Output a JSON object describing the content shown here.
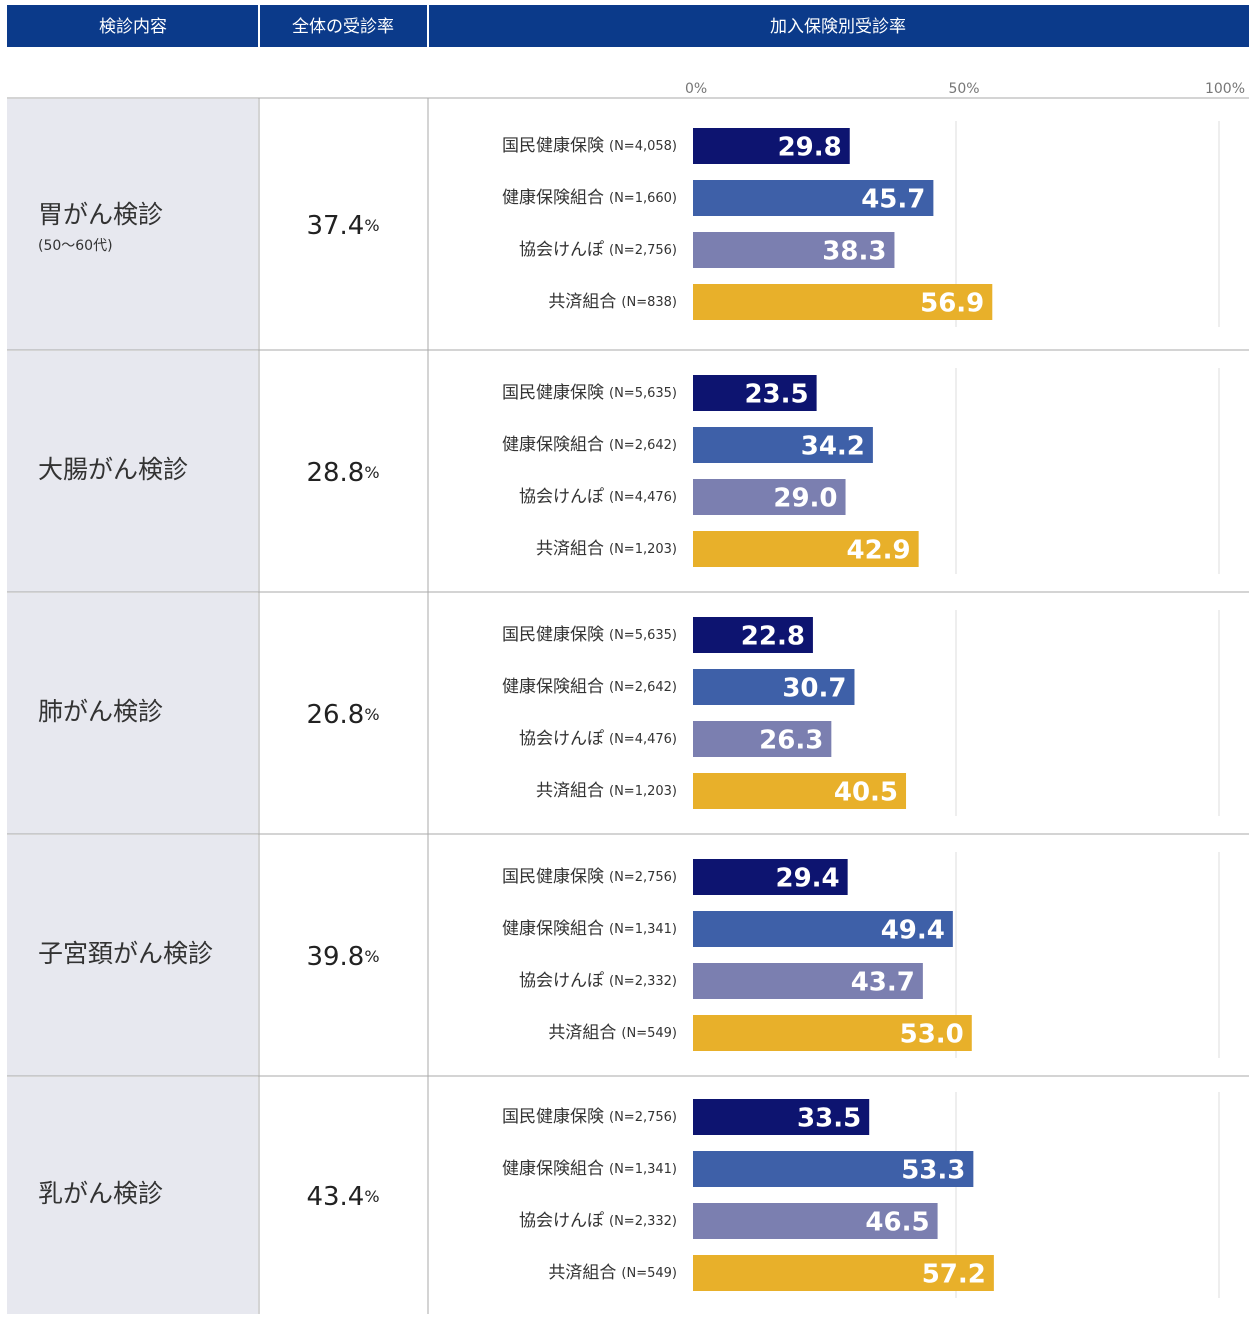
{
  "header": [
    "検診内容",
    "全体の受診率",
    "加入保険別受診率"
  ],
  "scale": {
    "xlim": [
      0,
      100
    ],
    "xticks": [
      {
        "value": 0,
        "label": "0%"
      },
      {
        "value": 50,
        "label": "50%"
      },
      {
        "value": 100,
        "label": "100%"
      }
    ],
    "grid": true,
    "colors": [
      "#0d1470",
      "#3e60a8",
      "#7b7fb0",
      "#e8b02a"
    ]
  },
  "chart_data": [
    {
      "type": "bar",
      "title": "胃がん検診",
      "subtitle": "(50～60代)",
      "overall": 37.4,
      "overall_unit": "%",
      "categories": [
        "国民健康保険",
        "健康保険組合",
        "協会けんぽ",
        "共済組合"
      ],
      "sample_sizes": [
        "(N=4,058)",
        "(N=1,660)",
        "(N=2,756)",
        "(N=838)"
      ],
      "values": [
        29.8,
        45.7,
        38.3,
        56.9
      ],
      "value_labels": [
        "29.8",
        "45.7",
        "38.3",
        "56.9"
      ]
    },
    {
      "type": "bar",
      "title": "大腸がん検診",
      "overall": 28.8,
      "overall_unit": "%",
      "categories": [
        "国民健康保険",
        "健康保険組合",
        "協会けんぽ",
        "共済組合"
      ],
      "sample_sizes": [
        "(N=5,635)",
        "(N=2,642)",
        "(N=4,476)",
        "(N=1,203)"
      ],
      "values": [
        23.5,
        34.2,
        29.0,
        42.9
      ],
      "value_labels": [
        "23.5",
        "34.2",
        "29.0",
        "42.9"
      ]
    },
    {
      "type": "bar",
      "title": "肺がん検診",
      "overall": 26.8,
      "overall_unit": "%",
      "categories": [
        "国民健康保険",
        "健康保険組合",
        "協会けんぽ",
        "共済組合"
      ],
      "sample_sizes": [
        "(N=5,635)",
        "(N=2,642)",
        "(N=4,476)",
        "(N=1,203)"
      ],
      "values": [
        22.8,
        30.7,
        26.3,
        40.5
      ],
      "value_labels": [
        "22.8",
        "30.7",
        "26.3",
        "40.5"
      ]
    },
    {
      "type": "bar",
      "title": "子宮頚がん検診",
      "overall": 39.8,
      "overall_unit": "%",
      "categories": [
        "国民健康保険",
        "健康保険組合",
        "協会けんぽ",
        "共済組合"
      ],
      "sample_sizes": [
        "(N=2,756)",
        "(N=1,341)",
        "(N=2,332)",
        "(N=549)"
      ],
      "values": [
        29.4,
        49.4,
        43.7,
        53.0
      ],
      "value_labels": [
        "29.4",
        "49.4",
        "43.7",
        "53.0"
      ]
    },
    {
      "type": "bar",
      "title": "乳がん検診",
      "overall": 43.4,
      "overall_unit": "%",
      "categories": [
        "国民健康保険",
        "健康保険組合",
        "協会けんぽ",
        "共済組合"
      ],
      "sample_sizes": [
        "(N=2,756)",
        "(N=1,341)",
        "(N=2,332)",
        "(N=549)"
      ],
      "values": [
        33.5,
        53.3,
        46.5,
        57.2
      ],
      "value_labels": [
        "33.5",
        "53.3",
        "46.5",
        "57.2"
      ]
    }
  ]
}
